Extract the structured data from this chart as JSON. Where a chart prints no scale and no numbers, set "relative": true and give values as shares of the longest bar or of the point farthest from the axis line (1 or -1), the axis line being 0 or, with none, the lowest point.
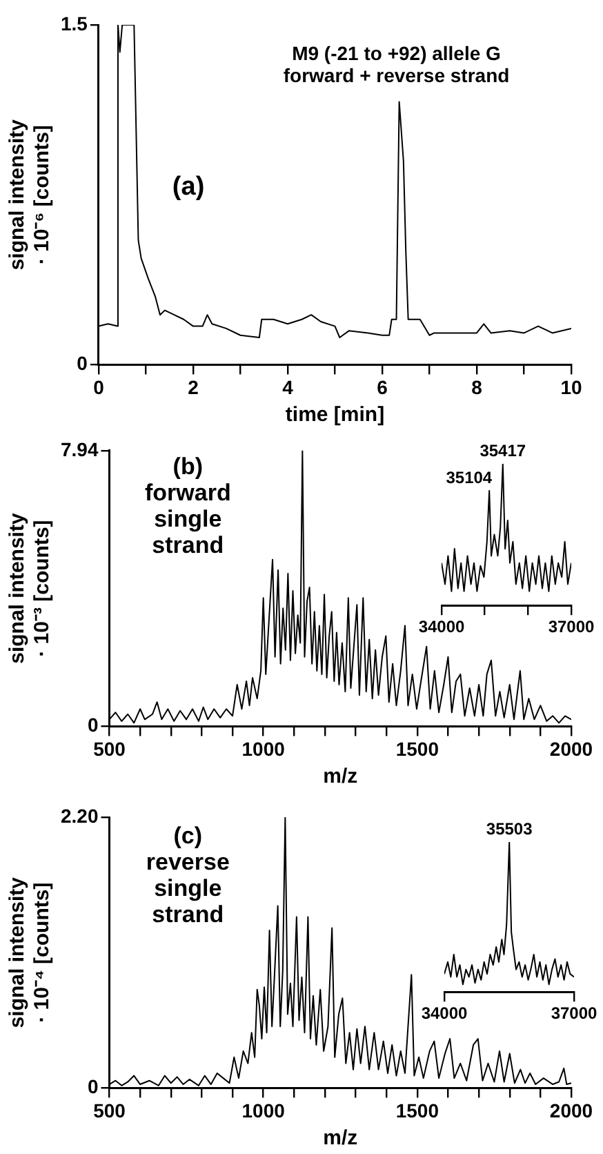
{
  "chart_data": [
    {
      "type": "line",
      "xlabel": "time [min]",
      "ylabel": "signal intensity\n· 10⁻⁶ [counts]",
      "color": "#000000",
      "annotations": [
        "M9 (-21 to +92) allele G\nforward + reverse strand",
        "(a)"
      ],
      "x": [
        0,
        0.2,
        0.4,
        0.41,
        0.45,
        0.5,
        0.75,
        0.84,
        0.9,
        1.05,
        1.2,
        1.3,
        1.4,
        1.6,
        1.8,
        2.0,
        2.2,
        2.3,
        2.4,
        2.7,
        3.0,
        3.4,
        3.45,
        3.7,
        4.0,
        4.3,
        4.5,
        4.7,
        5.0,
        5.1,
        5.3,
        5.7,
        6.0,
        6.15,
        6.2,
        6.3,
        6.36,
        6.45,
        6.5,
        6.55,
        6.8,
        7.0,
        7.1,
        7.5,
        8.0,
        8.15,
        8.3,
        8.7,
        9.0,
        9.3,
        9.6,
        10
      ],
      "values": [
        0.17,
        0.18,
        0.17,
        1.5,
        1.38,
        1.5,
        1.5,
        0.55,
        0.47,
        0.38,
        0.3,
        0.22,
        0.24,
        0.22,
        0.2,
        0.17,
        0.17,
        0.22,
        0.18,
        0.16,
        0.13,
        0.12,
        0.2,
        0.2,
        0.18,
        0.2,
        0.22,
        0.19,
        0.17,
        0.12,
        0.15,
        0.14,
        0.13,
        0.13,
        0.2,
        0.2,
        1.16,
        0.9,
        0.5,
        0.2,
        0.2,
        0.13,
        0.14,
        0.14,
        0.14,
        0.18,
        0.14,
        0.15,
        0.14,
        0.17,
        0.14,
        0.16
      ],
      "xlim": [
        0,
        10
      ],
      "ylim": [
        0,
        1.5
      ],
      "xticks": [
        0,
        {
          "value": 1,
          "label": null
        },
        2,
        {
          "value": 3,
          "label": null
        },
        4,
        {
          "value": 5,
          "label": null
        },
        6,
        {
          "value": 7,
          "label": null
        },
        8,
        {
          "value": 9,
          "label": null
        },
        10
      ],
      "yticks": [
        0,
        1.5
      ]
    },
    {
      "type": "line",
      "xlabel": "m/z",
      "ylabel": "signal intensity\n· 10⁻³ [counts]",
      "color": "#000000",
      "annotations": [
        "(b)\nforward\nsingle\nstrand"
      ],
      "x": [
        500,
        520,
        540,
        560,
        580,
        600,
        615,
        640,
        655,
        670,
        690,
        710,
        730,
        750,
        770,
        790,
        805,
        820,
        840,
        860,
        880,
        900,
        915,
        930,
        945,
        955,
        965,
        980,
        992,
        1000,
        1008,
        1018,
        1030,
        1038,
        1048,
        1056,
        1064,
        1072,
        1080,
        1088,
        1096,
        1104,
        1112,
        1120,
        1127,
        1134,
        1142,
        1150,
        1158,
        1166,
        1174,
        1182,
        1190,
        1198,
        1206,
        1214,
        1222,
        1230,
        1238,
        1246,
        1256,
        1266,
        1276,
        1284,
        1294,
        1304,
        1312,
        1324,
        1334,
        1344,
        1354,
        1364,
        1374,
        1386,
        1398,
        1408,
        1420,
        1432,
        1446,
        1460,
        1470,
        1484,
        1498,
        1512,
        1530,
        1542,
        1556,
        1570,
        1586,
        1600,
        1612,
        1626,
        1640,
        1654,
        1670,
        1686,
        1700,
        1714,
        1726,
        1740,
        1754,
        1768,
        1782,
        1800,
        1814,
        1834,
        1846,
        1862,
        1880,
        1900,
        1920,
        1940,
        1960,
        1980,
        2000
      ],
      "values": [
        0.2,
        0.4,
        0.15,
        0.35,
        0.1,
        0.5,
        0.2,
        0.35,
        0.7,
        0.2,
        0.5,
        0.15,
        0.45,
        0.2,
        0.5,
        0.15,
        0.55,
        0.2,
        0.5,
        0.25,
        0.5,
        0.3,
        1.2,
        0.5,
        1.3,
        0.6,
        1.4,
        0.8,
        1.6,
        3.7,
        1.5,
        3.0,
        4.8,
        2.0,
        4.5,
        1.8,
        3.4,
        2.2,
        4.4,
        1.9,
        3.9,
        2.1,
        3.2,
        2.4,
        7.94,
        2.0,
        3.6,
        4.0,
        1.8,
        3.3,
        1.6,
        2.9,
        1.5,
        3.8,
        1.4,
        2.6,
        3.3,
        1.3,
        2.7,
        1.2,
        2.4,
        1.0,
        3.7,
        1.1,
        2.3,
        3.5,
        0.9,
        3.7,
        1.0,
        2.5,
        0.8,
        2.2,
        0.9,
        2.0,
        2.6,
        0.7,
        1.8,
        0.6,
        1.6,
        2.9,
        0.6,
        1.5,
        0.5,
        1.3,
        2.3,
        0.5,
        1.6,
        0.4,
        1.2,
        2.0,
        0.4,
        1.3,
        1.5,
        0.3,
        1.1,
        0.3,
        1.2,
        0.3,
        1.5,
        1.9,
        0.3,
        1.0,
        0.25,
        1.2,
        0.2,
        1.6,
        0.2,
        0.8,
        0.2,
        0.6,
        0.15,
        0.3,
        0.1,
        0.3,
        0.2
      ],
      "xlim": [
        500,
        2000
      ],
      "ylim": [
        0,
        7.94
      ],
      "xticks": [
        500,
        {
          "value": 600,
          "label": null
        },
        {
          "value": 700,
          "label": null
        },
        {
          "value": 800,
          "label": null
        },
        {
          "value": 900,
          "label": null
        },
        1000,
        {
          "value": 1100,
          "label": null
        },
        {
          "value": 1200,
          "label": null
        },
        {
          "value": 1300,
          "label": null
        },
        {
          "value": 1400,
          "label": null
        },
        1500,
        {
          "value": 1600,
          "label": null
        },
        {
          "value": 1700,
          "label": null
        },
        {
          "value": 1800,
          "label": null
        },
        {
          "value": 1900,
          "label": null
        },
        2000
      ],
      "yticks": [
        0,
        7.94
      ]
    },
    {
      "type": "line",
      "relative": true,
      "color": "#000000",
      "annotations": [
        {
          "text": "35104",
          "x": 35104,
          "y": 0.81
        },
        {
          "text": "35417",
          "x": 35417,
          "y": 1.0
        }
      ],
      "x": [
        34000,
        34080,
        34150,
        34230,
        34300,
        34380,
        34450,
        34520,
        34600,
        34680,
        34750,
        34820,
        34900,
        34980,
        35050,
        35104,
        35150,
        35220,
        35300,
        35360,
        35417,
        35470,
        35530,
        35580,
        35650,
        35720,
        35800,
        35870,
        35950,
        36030,
        36100,
        36180,
        36250,
        36330,
        36400,
        36480,
        36550,
        36630,
        36700,
        36780,
        36850,
        36920,
        37000
      ],
      "values": [
        0.3,
        0.15,
        0.35,
        0.1,
        0.4,
        0.12,
        0.3,
        0.1,
        0.35,
        0.15,
        0.3,
        0.1,
        0.28,
        0.2,
        0.45,
        0.81,
        0.35,
        0.5,
        0.35,
        0.55,
        1.0,
        0.4,
        0.6,
        0.3,
        0.45,
        0.15,
        0.3,
        0.12,
        0.35,
        0.1,
        0.3,
        0.15,
        0.35,
        0.12,
        0.3,
        0.1,
        0.35,
        0.15,
        0.3,
        0.2,
        0.45,
        0.15,
        0.3
      ],
      "xlim": [
        34000,
        37000
      ],
      "xticks": [
        34000,
        {
          "value": 35000,
          "label": null
        },
        {
          "value": 36000,
          "label": null
        },
        37000
      ]
    },
    {
      "type": "line",
      "xlabel": "m/z",
      "ylabel": "signal intensity\n· 10⁻⁴ [counts]",
      "color": "#000000",
      "annotations": [
        "(c)\nreverse\nsingle\nstrand"
      ],
      "x": [
        500,
        520,
        540,
        560,
        580,
        600,
        630,
        660,
        680,
        700,
        720,
        740,
        760,
        790,
        810,
        830,
        850,
        870,
        890,
        905,
        920,
        935,
        950,
        962,
        972,
        980,
        987,
        995,
        1003,
        1011,
        1020,
        1028,
        1036,
        1047,
        1055,
        1063,
        1071,
        1079,
        1088,
        1096,
        1108,
        1116,
        1125,
        1134,
        1145,
        1153,
        1162,
        1172,
        1185,
        1196,
        1210,
        1223,
        1232,
        1245,
        1257,
        1268,
        1280,
        1292,
        1304,
        1316,
        1330,
        1344,
        1360,
        1374,
        1390,
        1404,
        1418,
        1432,
        1446,
        1460,
        1481,
        1490,
        1505,
        1520,
        1540,
        1555,
        1570,
        1590,
        1606,
        1620,
        1640,
        1660,
        1682,
        1697,
        1712,
        1730,
        1750,
        1767,
        1782,
        1800,
        1816,
        1835,
        1850,
        1866,
        1884,
        1910,
        1940,
        1960,
        1976,
        1985,
        2000
      ],
      "values": [
        0.03,
        0.06,
        0.02,
        0.05,
        0.1,
        0.03,
        0.06,
        0.02,
        0.1,
        0.04,
        0.09,
        0.03,
        0.07,
        0.02,
        0.1,
        0.03,
        0.12,
        0.08,
        0.04,
        0.25,
        0.08,
        0.3,
        0.2,
        0.45,
        0.25,
        0.8,
        0.67,
        0.4,
        0.82,
        0.45,
        1.28,
        0.5,
        0.9,
        1.48,
        0.5,
        0.95,
        2.2,
        0.6,
        0.85,
        0.5,
        1.39,
        0.55,
        0.9,
        0.45,
        1.39,
        0.4,
        0.75,
        0.35,
        0.8,
        0.3,
        0.5,
        1.3,
        0.25,
        0.6,
        0.73,
        0.2,
        0.45,
        0.15,
        0.48,
        0.2,
        0.5,
        0.15,
        0.45,
        0.15,
        0.38,
        0.12,
        0.35,
        0.1,
        0.3,
        0.12,
        0.92,
        0.1,
        0.25,
        0.08,
        0.3,
        0.38,
        0.08,
        0.28,
        0.4,
        0.08,
        0.2,
        0.06,
        0.35,
        0.4,
        0.06,
        0.2,
        0.05,
        0.3,
        0.05,
        0.28,
        0.04,
        0.15,
        0.04,
        0.12,
        0.03,
        0.08,
        0.03,
        0.05,
        0.16,
        0.03,
        0.04
      ],
      "xlim": [
        500,
        2000
      ],
      "ylim": [
        0,
        2.2
      ],
      "xticks": [
        500,
        {
          "value": 600,
          "label": null
        },
        {
          "value": 700,
          "label": null
        },
        {
          "value": 800,
          "label": null
        },
        {
          "value": 900,
          "label": null
        },
        1000,
        {
          "value": 1100,
          "label": null
        },
        {
          "value": 1200,
          "label": null
        },
        {
          "value": 1300,
          "label": null
        },
        {
          "value": 1400,
          "label": null
        },
        1500,
        {
          "value": 1600,
          "label": null
        },
        {
          "value": 1700,
          "label": null
        },
        {
          "value": 1800,
          "label": null
        },
        {
          "value": 1900,
          "label": null
        },
        2000
      ],
      "yticks": [
        0,
        {
          "value": 2.2,
          "label": "2.20"
        }
      ]
    },
    {
      "type": "line",
      "relative": true,
      "color": "#000000",
      "annotations": [
        {
          "text": "35503",
          "x": 35503,
          "y": 1.0
        }
      ],
      "x": [
        34000,
        34080,
        34150,
        34220,
        34290,
        34360,
        34430,
        34500,
        34570,
        34640,
        34710,
        34780,
        34850,
        34920,
        34990,
        35060,
        35130,
        35200,
        35260,
        35330,
        35380,
        35440,
        35503,
        35550,
        35600,
        35660,
        35730,
        35800,
        35870,
        35940,
        36000,
        36070,
        36140,
        36210,
        36280,
        36350,
        36420,
        36490,
        36560,
        36630,
        36700,
        36770,
        36840,
        36910,
        37000
      ],
      "values": [
        0.12,
        0.2,
        0.1,
        0.25,
        0.1,
        0.18,
        0.05,
        0.15,
        0.1,
        0.18,
        0.06,
        0.15,
        0.08,
        0.2,
        0.12,
        0.25,
        0.18,
        0.3,
        0.2,
        0.35,
        0.25,
        0.45,
        1.0,
        0.4,
        0.28,
        0.15,
        0.2,
        0.1,
        0.18,
        0.08,
        0.15,
        0.25,
        0.1,
        0.2,
        0.08,
        0.18,
        0.05,
        0.15,
        0.22,
        0.1,
        0.18,
        0.08,
        0.2,
        0.12,
        0.1
      ],
      "xlim": [
        34000,
        37000
      ],
      "xticks": [
        34000,
        37000
      ]
    }
  ]
}
